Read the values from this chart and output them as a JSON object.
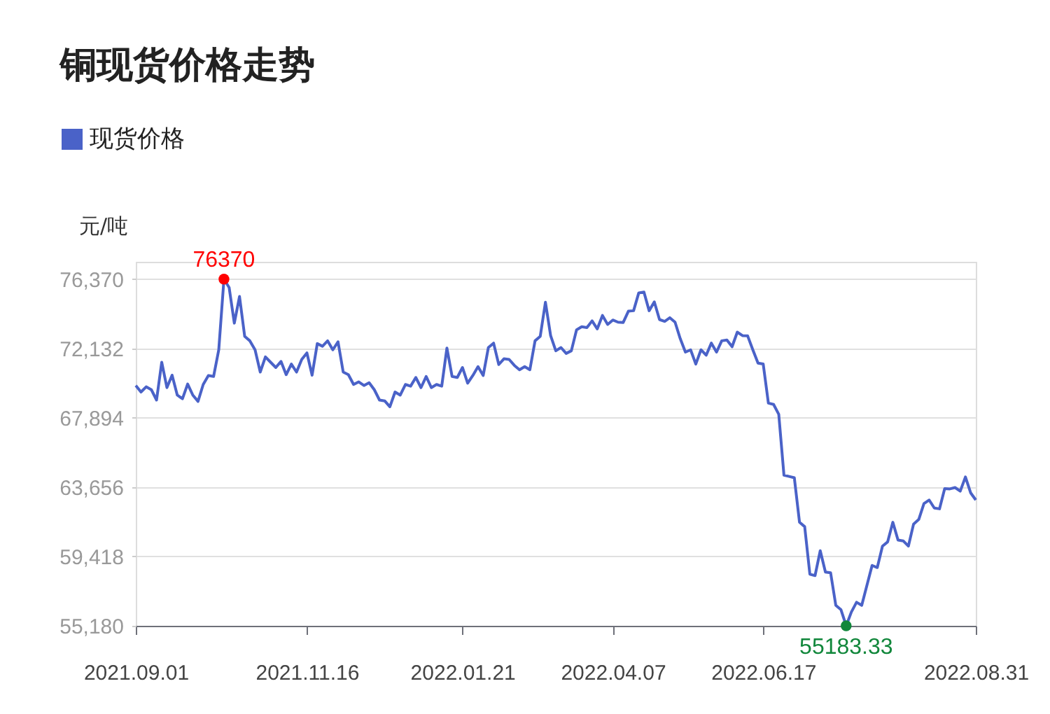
{
  "chart_data": {
    "type": "line",
    "title": "铜现货价格走势",
    "ylabel": "元/吨",
    "legend": "top left",
    "grid": "y",
    "marker": "none",
    "line_style": "solid",
    "categories": [
      "2021.09.01",
      null,
      null,
      null,
      null,
      null,
      null,
      null,
      null,
      null,
      null,
      null,
      null,
      null,
      null,
      null,
      null,
      null,
      null,
      null,
      null,
      null,
      null,
      null,
      null,
      null,
      null,
      null,
      null,
      null,
      null,
      null,
      null,
      "2021.11.16",
      null,
      null,
      null,
      null,
      null,
      null,
      null,
      null,
      null,
      null,
      null,
      null,
      null,
      null,
      null,
      null,
      null,
      null,
      null,
      null,
      null,
      null,
      null,
      null,
      null,
      null,
      null,
      null,
      null,
      "2022.01.21",
      null,
      null,
      null,
      null,
      null,
      null,
      null,
      null,
      null,
      null,
      null,
      null,
      null,
      null,
      null,
      null,
      null,
      null,
      null,
      null,
      null,
      null,
      null,
      null,
      null,
      null,
      null,
      null,
      "2022.04.07",
      null,
      null,
      null,
      null,
      null,
      null,
      null,
      null,
      null,
      null,
      null,
      null,
      null,
      null,
      null,
      null,
      null,
      null,
      null,
      null,
      null,
      null,
      null,
      null,
      null,
      null,
      null,
      null,
      "2022.06.17",
      null,
      null,
      null,
      null,
      null,
      null,
      null,
      null,
      null,
      null,
      null,
      null,
      null,
      null,
      null,
      null,
      null,
      null,
      null,
      null,
      null,
      null,
      null,
      null,
      null,
      null,
      null,
      null,
      null,
      null,
      null,
      null,
      null,
      null,
      null,
      null,
      null,
      null,
      null,
      null,
      "2022.08.31"
    ],
    "ylim": [
      55180,
      77430
    ],
    "yticks": [
      {
        "value": 55180,
        "label": "55,180"
      },
      {
        "value": 59418,
        "label": "59,418"
      },
      {
        "value": 63656,
        "label": "63,656"
      },
      {
        "value": 67894,
        "label": "67,894"
      },
      {
        "value": 72132,
        "label": "72,132"
      },
      {
        "value": 76370,
        "label": "76,370"
      }
    ],
    "annotations": [
      {
        "text": "76370",
        "y": 76370
      },
      {
        "text": "55183.33",
        "y": 55183.33
      }
    ],
    "series": [
      {
        "name": "现货价格",
        "color": "#4a62c8",
        "values": [
          69870,
          69470,
          69790,
          69610,
          68980,
          71290,
          69740,
          70500,
          69280,
          69060,
          69960,
          69280,
          68900,
          69930,
          70480,
          70420,
          72050,
          76370,
          75860,
          73680,
          75310,
          72870,
          72600,
          72050,
          70690,
          71620,
          71290,
          70970,
          71340,
          70530,
          71180,
          70690,
          71460,
          71860,
          70500,
          72430,
          72270,
          72600,
          72050,
          72540,
          70690,
          70530,
          69930,
          70090,
          69870,
          70040,
          69610,
          68980,
          68930,
          68570,
          69470,
          69280,
          69930,
          69830,
          70360,
          69740,
          70420,
          69740,
          69930,
          69830,
          72160,
          70420,
          70360,
          70970,
          70010,
          70480,
          71020,
          70480,
          72190,
          72460,
          71150,
          71500,
          71460,
          71100,
          70830,
          71020,
          70830,
          72600,
          72870,
          74960,
          72920,
          71990,
          72190,
          71830,
          71990,
          73270,
          73460,
          73410,
          73820,
          73330,
          74150,
          73600,
          73870,
          73740,
          73720,
          74410,
          74440,
          75530,
          75580,
          74440,
          74980,
          73900,
          73790,
          74010,
          73740,
          72730,
          71910,
          72050,
          71180,
          72050,
          71720,
          72460,
          71910,
          72600,
          72650,
          72240,
          73130,
          72920,
          72900,
          72050,
          71240,
          71180,
          68790,
          68710,
          68110,
          64390,
          64310,
          64230,
          61510,
          61240,
          58330,
          58250,
          59770,
          58460,
          58420,
          56430,
          56160,
          55183.33,
          56020,
          56620,
          56430,
          57650,
          58870,
          58740,
          60050,
          60310,
          61510,
          60420,
          60370,
          60050,
          61400,
          61680,
          62650,
          62870,
          62380,
          62330,
          63570,
          63550,
          63630,
          63410,
          64280,
          63310,
          62870
        ]
      }
    ]
  }
}
